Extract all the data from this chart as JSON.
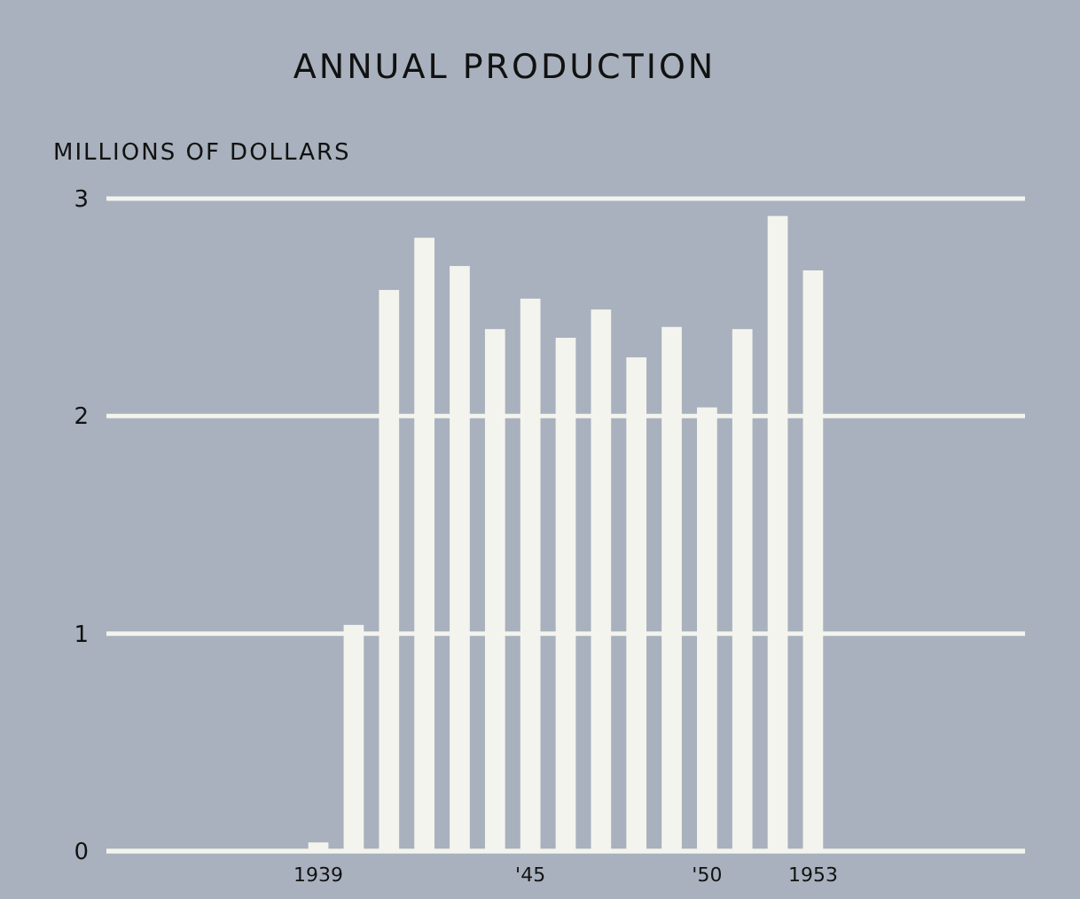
{
  "chart_data": {
    "type": "bar",
    "title": "ANNUAL PRODUCTION",
    "ylabel": "MILLIONS OF DOLLARS",
    "x": [
      1939,
      1940,
      1941,
      1942,
      1943,
      1944,
      1945,
      1946,
      1947,
      1948,
      1949,
      1950,
      1951,
      1952,
      1953
    ],
    "values": [
      0.04,
      1.04,
      2.58,
      2.82,
      2.69,
      2.4,
      2.54,
      2.36,
      2.49,
      2.27,
      2.41,
      2.04,
      2.4,
      2.92,
      2.67
    ],
    "color": "#f4f4ee",
    "xlim": [
      1933,
      1959
    ],
    "xticks": [
      1939,
      {
        "value": 1945,
        "label": "'45"
      },
      {
        "value": 1950,
        "label": "'50"
      },
      1953
    ],
    "ylim": [
      0,
      3
    ],
    "yticks": [
      0,
      1,
      2,
      3
    ],
    "grid": "y"
  }
}
